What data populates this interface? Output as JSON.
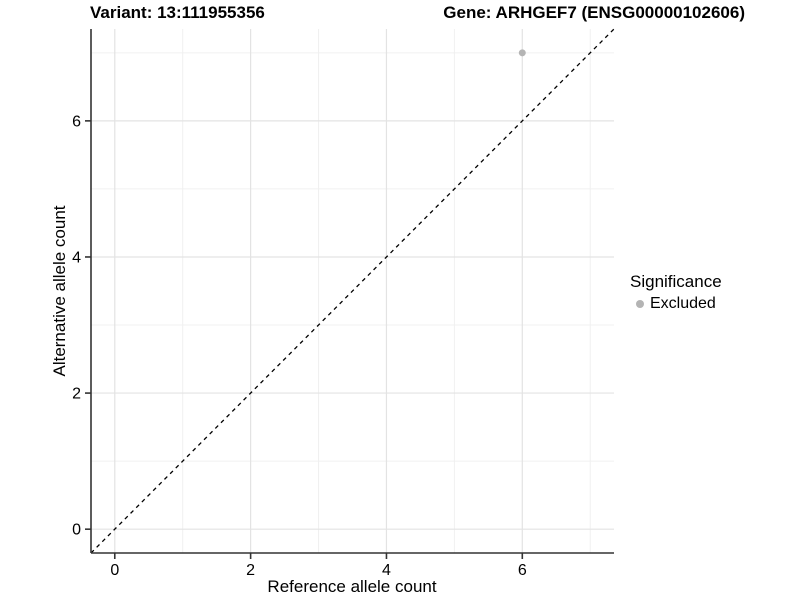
{
  "header": {
    "title_left": "Variant: 13:111955356",
    "title_right": "Gene: ARHGEF7 (ENSG00000102606)"
  },
  "legend": {
    "title": "Significance",
    "entries": [
      {
        "label": "Excluded",
        "color": "#b4b4b4"
      }
    ],
    "position": "right"
  },
  "chart_data": {
    "type": "scatter",
    "title": "Variant: 13:111955356   Gene: ARHGEF7 (ENSG00000102606)",
    "xlabel": "Reference allele count",
    "ylabel": "Alternative allele count",
    "xlim": [
      -0.35,
      7.35
    ],
    "ylim": [
      -0.35,
      7.35
    ],
    "xticks": [
      0,
      2,
      4,
      6
    ],
    "yticks": [
      0,
      2,
      4,
      6
    ],
    "minor_xticks": [
      1,
      3,
      5,
      7
    ],
    "minor_yticks": [
      1,
      3,
      5,
      7
    ],
    "grid": true,
    "series": [
      {
        "name": "Excluded",
        "color": "#b4b4b4",
        "points": [
          {
            "x": 6,
            "y": 7
          }
        ]
      }
    ],
    "identity_line": {
      "style": "dashed",
      "color": "#000000",
      "from": [
        -0.35,
        -0.35
      ],
      "to": [
        7.35,
        7.35
      ]
    },
    "colors": {
      "panel_background": "#ffffff",
      "grid_major": "#e3e3e3",
      "grid_minor": "#f0f0f0",
      "axis_line": "#333333",
      "tick": "#333333",
      "text": "#000000",
      "point": "#b4b4b4"
    }
  }
}
